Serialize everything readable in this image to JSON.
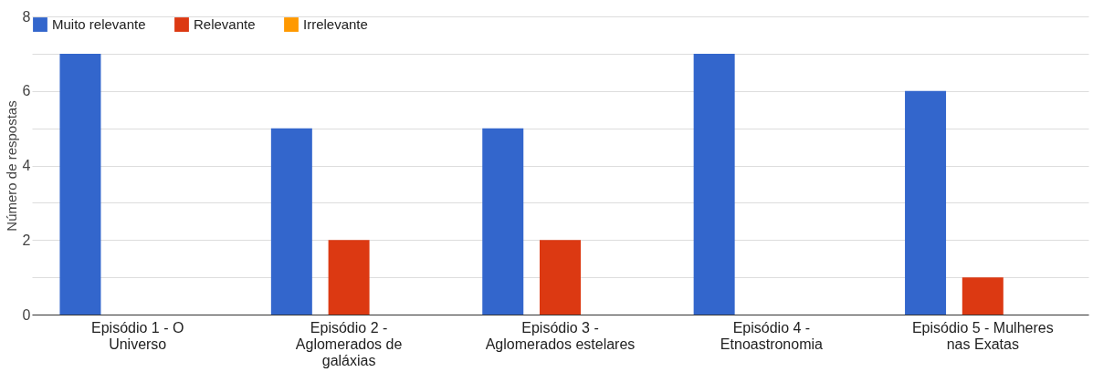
{
  "chart_data": {
    "type": "bar",
    "ylabel": "Número de respostas",
    "categories": [
      "Episódio 1 - O Universo",
      "Episódio 2 - Aglomerados de galáxias",
      "Episódio 3 - Aglomerados estelares",
      "Episódio 4 - Etnoastronomia",
      "Episódio 5 - Mulheres nas Exatas"
    ],
    "series": [
      {
        "name": "Muito relevante",
        "color": "#3366cc",
        "values": [
          7,
          5,
          5,
          7,
          6
        ]
      },
      {
        "name": "Relevante",
        "color": "#dc3912",
        "values": [
          0,
          2,
          2,
          0,
          1
        ]
      },
      {
        "name": "Irrelevante",
        "color": "#ff9900",
        "values": [
          0,
          0,
          0,
          0,
          0
        ]
      }
    ],
    "ylim": [
      0,
      8
    ],
    "yticks": [
      0,
      {
        "value": 1,
        "label": null
      },
      2,
      {
        "value": 3,
        "label": null
      },
      4,
      {
        "value": 5,
        "label": null
      },
      6,
      {
        "value": 7,
        "label": null
      },
      8
    ],
    "grid": "y",
    "legend": "top left"
  }
}
